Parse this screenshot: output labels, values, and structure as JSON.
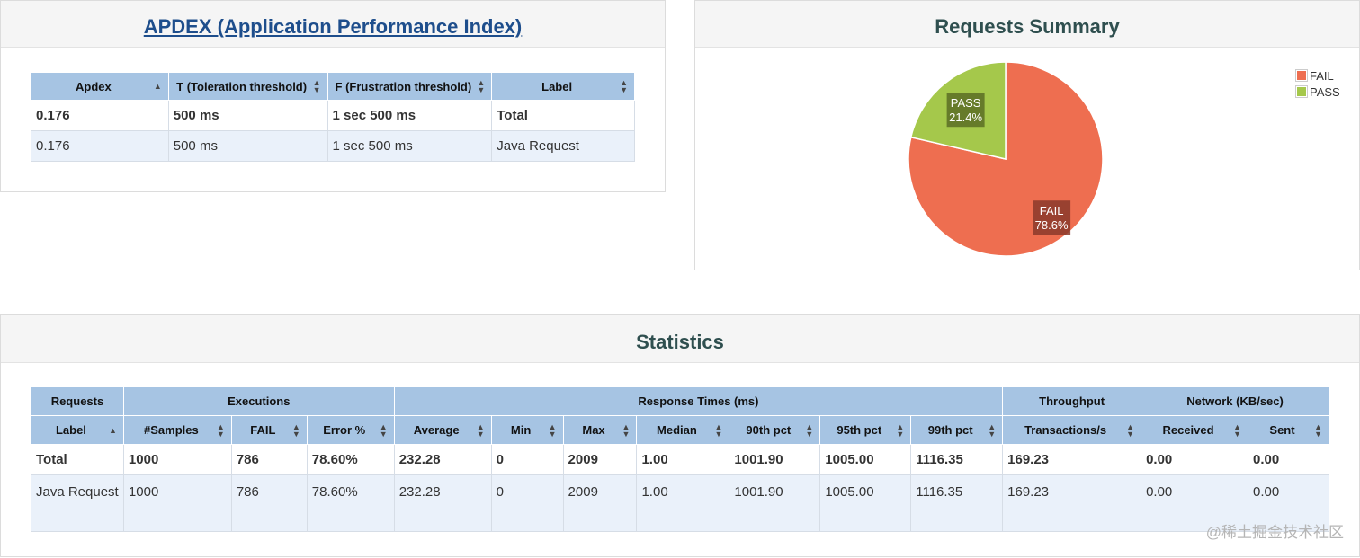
{
  "colors": {
    "header_bg": "#a6c4e3",
    "fail": "#ee6e50",
    "pass": "#a5c84b",
    "title_link": "#1e4e8c"
  },
  "apdex": {
    "title": "APDEX (Application Performance Index)",
    "columns": [
      "Apdex",
      "T (Toleration threshold)",
      "F (Frustration threshold)",
      "Label"
    ],
    "rows": [
      [
        "0.176",
        "500 ms",
        "1 sec 500 ms",
        "Total"
      ],
      [
        "0.176",
        "500 ms",
        "1 sec 500 ms",
        "Java Request"
      ]
    ]
  },
  "summary": {
    "title": "Requests Summary",
    "legend": [
      {
        "label": "FAIL",
        "color": "#ee6e50"
      },
      {
        "label": "PASS",
        "color": "#a5c84b"
      }
    ]
  },
  "chart_data": {
    "type": "pie",
    "title": "Requests Summary",
    "slices": [
      {
        "label": "FAIL",
        "value": 78.6,
        "display": "78.6%",
        "color": "#ee6e50"
      },
      {
        "label": "PASS",
        "value": 21.4,
        "display": "21.4%",
        "color": "#a5c84b"
      }
    ],
    "legend_position": "top-right"
  },
  "statistics": {
    "title": "Statistics",
    "groups": [
      "Requests",
      "Executions",
      "Response Times (ms)",
      "Throughput",
      "Network (KB/sec)"
    ],
    "columns": [
      "Label",
      "#Samples",
      "FAIL",
      "Error %",
      "Average",
      "Min",
      "Max",
      "Median",
      "90th pct",
      "95th pct",
      "99th pct",
      "Transactions/s",
      "Received",
      "Sent"
    ],
    "rows": [
      [
        "Total",
        "1000",
        "786",
        "78.60%",
        "232.28",
        "0",
        "2009",
        "1.00",
        "1001.90",
        "1005.00",
        "1116.35",
        "169.23",
        "0.00",
        "0.00"
      ],
      [
        "Java Request",
        "1000",
        "786",
        "78.60%",
        "232.28",
        "0",
        "2009",
        "1.00",
        "1001.90",
        "1005.00",
        "1116.35",
        "169.23",
        "0.00",
        "0.00"
      ]
    ]
  },
  "watermark": "@稀土掘金技术社区"
}
